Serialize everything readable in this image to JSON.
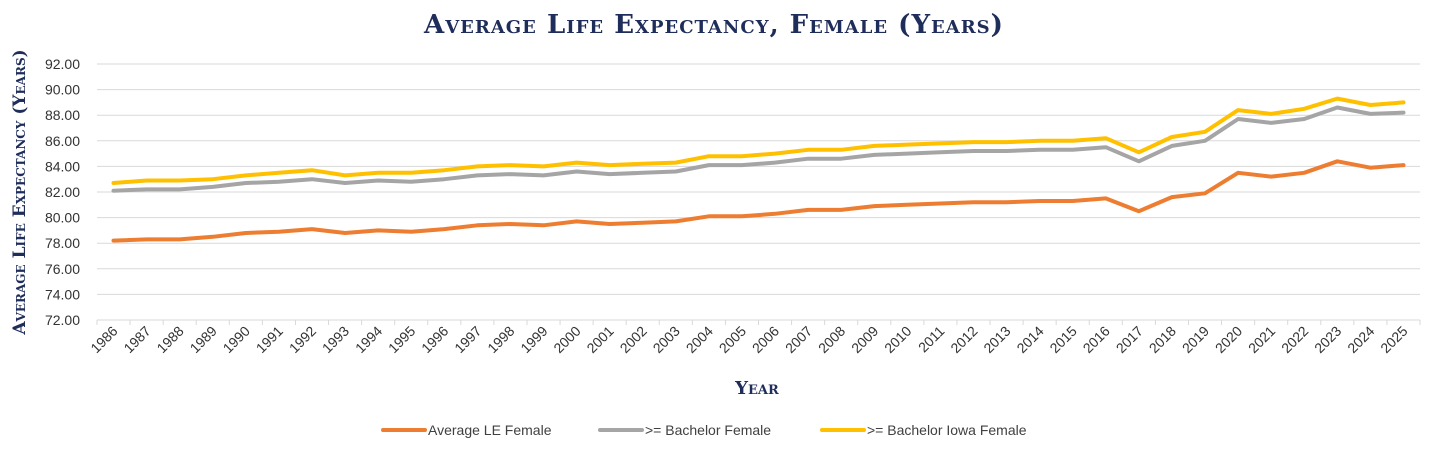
{
  "chart_data": {
    "type": "line",
    "title": "Average Life Expectancy, Female (Years)",
    "xlabel": "Year",
    "ylabel": "Average Life Expectancy (Years)",
    "ylim": [
      72,
      92
    ],
    "y_ticks": [
      "72.00",
      "74.00",
      "76.00",
      "78.00",
      "80.00",
      "82.00",
      "84.00",
      "86.00",
      "88.00",
      "90.00",
      "92.00"
    ],
    "grid": true,
    "legend_position": "bottom",
    "categories": [
      "1986",
      "1987",
      "1988",
      "1989",
      "1990",
      "1991",
      "1992",
      "1993",
      "1994",
      "1995",
      "1996",
      "1997",
      "1998",
      "1999",
      "2000",
      "2001",
      "2002",
      "2003",
      "2004",
      "2005",
      "2006",
      "2007",
      "2008",
      "2009",
      "2010",
      "2011",
      "2012",
      "2013",
      "2014",
      "2015",
      "2016",
      "2017",
      "2018",
      "2019",
      "2020",
      "2021",
      "2022",
      "2023",
      "2024",
      "2025"
    ],
    "series": [
      {
        "name": "Average LE Female",
        "color": "#ed7d31",
        "values": [
          78.2,
          78.3,
          78.3,
          78.5,
          78.8,
          78.9,
          79.1,
          78.8,
          79.0,
          78.9,
          79.1,
          79.4,
          79.5,
          79.4,
          79.7,
          79.5,
          79.6,
          79.7,
          80.1,
          80.1,
          80.3,
          80.6,
          80.6,
          80.9,
          81.0,
          81.1,
          81.2,
          81.2,
          81.3,
          81.3,
          81.5,
          80.5,
          81.6,
          81.9,
          83.5,
          83.2,
          83.5,
          84.4,
          83.9,
          84.1
        ]
      },
      {
        "name": ">= Bachelor Female",
        "color": "#a5a5a5",
        "values": [
          82.1,
          82.2,
          82.2,
          82.4,
          82.7,
          82.8,
          83.0,
          82.7,
          82.9,
          82.8,
          83.0,
          83.3,
          83.4,
          83.3,
          83.6,
          83.4,
          83.5,
          83.6,
          84.1,
          84.1,
          84.3,
          84.6,
          84.6,
          84.9,
          85.0,
          85.1,
          85.2,
          85.2,
          85.3,
          85.3,
          85.5,
          84.4,
          85.6,
          86.0,
          87.7,
          87.4,
          87.7,
          88.6,
          88.1,
          88.2
        ]
      },
      {
        "name": ">= Bachelor Iowa Female",
        "color": "#ffc000",
        "values": [
          82.7,
          82.9,
          82.9,
          83.0,
          83.3,
          83.5,
          83.7,
          83.3,
          83.5,
          83.5,
          83.7,
          84.0,
          84.1,
          84.0,
          84.3,
          84.1,
          84.2,
          84.3,
          84.8,
          84.8,
          85.0,
          85.3,
          85.3,
          85.6,
          85.7,
          85.8,
          85.9,
          85.9,
          86.0,
          86.0,
          86.2,
          85.1,
          86.3,
          86.7,
          88.4,
          88.1,
          88.5,
          89.3,
          88.8,
          89.0
        ]
      }
    ]
  }
}
